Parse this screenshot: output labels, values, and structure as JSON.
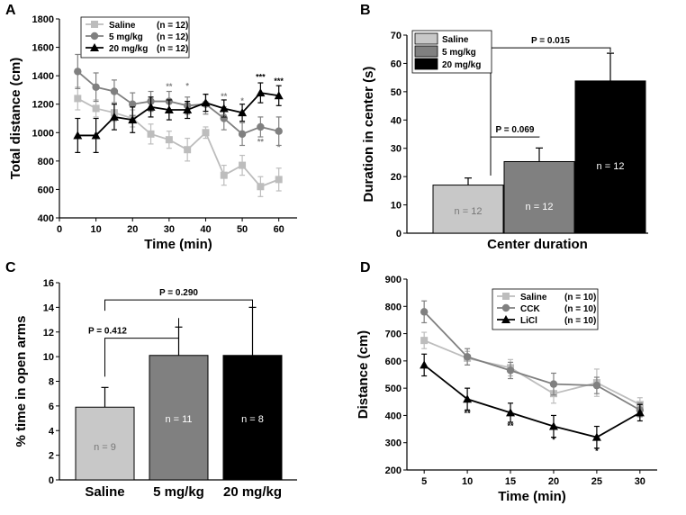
{
  "chart_data": [
    {
      "panel": "A",
      "type": "line",
      "xlabel": "Time (min)",
      "ylabel": "Total distance (cm)",
      "xlim": [
        0,
        65
      ],
      "ylim": [
        400,
        1800
      ],
      "xticks": [
        0,
        10,
        20,
        30,
        40,
        50,
        60
      ],
      "yticks": [
        400,
        600,
        800,
        1000,
        1200,
        1400,
        1600,
        1800
      ],
      "legend": {
        "placement": "top-left"
      },
      "x": [
        5,
        10,
        15,
        20,
        25,
        30,
        35,
        40,
        45,
        50,
        55,
        60
      ],
      "series": [
        {
          "name": "Saline",
          "n": "(n = 12)",
          "color": "#bdbdbd",
          "marker": "square",
          "values": [
            1240,
            1170,
            1140,
            1100,
            990,
            950,
            880,
            1000,
            700,
            770,
            620,
            670
          ],
          "errors": [
            80,
            60,
            60,
            60,
            70,
            60,
            80,
            40,
            70,
            70,
            70,
            80
          ]
        },
        {
          "name": "5 mg/kg",
          "n": "(n = 12)",
          "color": "#808080",
          "marker": "circle",
          "values": [
            1430,
            1320,
            1290,
            1200,
            1220,
            1220,
            1190,
            1200,
            1100,
            990,
            1040,
            1010
          ],
          "errors": [
            120,
            100,
            80,
            80,
            70,
            70,
            60,
            70,
            80,
            80,
            70,
            100
          ]
        },
        {
          "name": "20 mg/kg",
          "n": "(n = 12)",
          "color": "#000000",
          "marker": "triangle",
          "values": [
            980,
            980,
            1110,
            1090,
            1180,
            1160,
            1160,
            1210,
            1170,
            1140,
            1280,
            1260
          ],
          "errors": [
            120,
            120,
            90,
            90,
            70,
            70,
            60,
            60,
            60,
            60,
            70,
            70
          ]
        }
      ],
      "annotations": [
        {
          "x": 30,
          "y": 1305,
          "text": "**",
          "color": "#808080"
        },
        {
          "x": 35,
          "y": 1310,
          "text": "*",
          "color": "#808080"
        },
        {
          "x": 45,
          "y": 1235,
          "text": "**",
          "color": "#808080"
        },
        {
          "x": 45,
          "y": 1090,
          "text": "**",
          "color": "#808080"
        },
        {
          "x": 50,
          "y": 1205,
          "text": "*",
          "color": "#808080"
        },
        {
          "x": 55,
          "y": 1372,
          "text": "***",
          "color": "#000000"
        },
        {
          "x": 55,
          "y": 915,
          "text": "**",
          "color": "#808080"
        },
        {
          "x": 60,
          "y": 1345,
          "text": "***",
          "color": "#000000"
        },
        {
          "x": 60,
          "y": 878,
          "text": "*",
          "color": "#808080"
        }
      ]
    },
    {
      "panel": "B",
      "type": "bar",
      "xlabel": "Center duration",
      "ylabel": "Duration in center (s)",
      "ylim": [
        0,
        70
      ],
      "yticks": [
        0,
        10,
        20,
        30,
        40,
        50,
        60,
        70
      ],
      "legend": {
        "placement": "top-left"
      },
      "categories": [
        "Saline",
        "5 mg/kg",
        "20 mg/kg"
      ],
      "values": [
        17,
        25.3,
        53.8
      ],
      "errors": [
        2.5,
        4.8,
        9.8
      ],
      "colors": [
        "#c8c8c8",
        "#808080",
        "#000000"
      ],
      "bar_labels": [
        "n = 12",
        "n = 12",
        "n = 12"
      ],
      "brackets": [
        {
          "from": 0,
          "to": 1,
          "y": 34,
          "label": "P = 0.069"
        },
        {
          "from": 0,
          "to": 2,
          "y": 65.5,
          "label": "P = 0.015"
        }
      ]
    },
    {
      "panel": "C",
      "type": "bar",
      "xlabel": "",
      "ylabel": "% time in open arms",
      "ylim": [
        0,
        16
      ],
      "yticks": [
        0,
        2,
        4,
        6,
        8,
        10,
        12,
        14,
        16
      ],
      "categories": [
        "Saline",
        "5 mg/kg",
        "20 mg/kg"
      ],
      "values": [
        5.9,
        10.1,
        10.1
      ],
      "errors": [
        1.6,
        2.3,
        3.9
      ],
      "colors": [
        "#c8c8c8",
        "#808080",
        "#000000"
      ],
      "bar_labels": [
        "n = 9",
        "n = 11",
        "n = 8"
      ],
      "brackets": [
        {
          "from": 0,
          "to": 1,
          "y": 11.5,
          "label": "P = 0.412"
        },
        {
          "from": 0,
          "to": 2,
          "y": 14.6,
          "label": "P = 0.290"
        }
      ]
    },
    {
      "panel": "D",
      "type": "line",
      "xlabel": "Time (min)",
      "ylabel": "Distance (cm)",
      "xlim": [
        3,
        32
      ],
      "ylim": [
        200,
        900
      ],
      "xticks": [
        5,
        10,
        15,
        20,
        25,
        30
      ],
      "yticks": [
        200,
        300,
        400,
        500,
        600,
        700,
        800,
        900
      ],
      "legend": {
        "placement": "top-right"
      },
      "x": [
        5,
        10,
        15,
        20,
        25,
        30
      ],
      "series": [
        {
          "name": "Saline",
          "n": "(n = 10)",
          "color": "#bdbdbd",
          "marker": "square",
          "values": [
            675,
            610,
            575,
            480,
            520,
            440
          ],
          "errors": [
            30,
            25,
            30,
            35,
            50,
            25
          ]
        },
        {
          "name": "CCK",
          "n": "(n = 10)",
          "color": "#808080",
          "marker": "circle",
          "values": [
            780,
            615,
            565,
            515,
            510,
            420
          ],
          "errors": [
            40,
            30,
            30,
            40,
            30,
            25
          ]
        },
        {
          "name": "LiCl",
          "n": "(n = 10)",
          "color": "#000000",
          "marker": "triangle",
          "values": [
            585,
            460,
            410,
            360,
            320,
            410
          ],
          "errors": [
            40,
            40,
            35,
            40,
            40,
            30
          ]
        }
      ],
      "annotations": [
        {
          "x": 10,
          "y": 398,
          "text": "**",
          "color": "#000000"
        },
        {
          "x": 15,
          "y": 352,
          "text": "**",
          "color": "#000000"
        },
        {
          "x": 20,
          "y": 300,
          "text": "*",
          "color": "#000000"
        },
        {
          "x": 25,
          "y": 260,
          "text": "*",
          "color": "#000000"
        }
      ]
    }
  ]
}
